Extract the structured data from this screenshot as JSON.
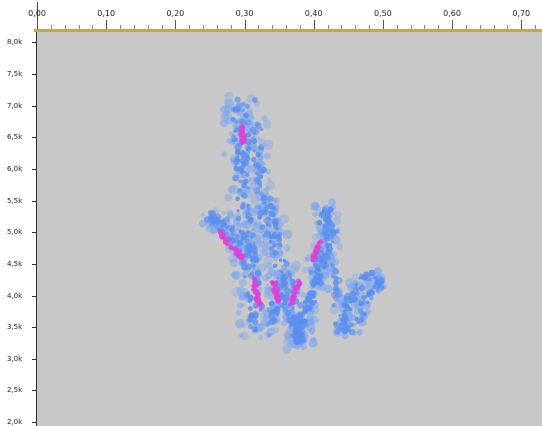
{
  "time_ruler": {
    "labels": [
      "0,00",
      "0,10",
      "0,20",
      "0,30",
      "0,40",
      "0,50",
      "0,60",
      "0,70"
    ],
    "values": [
      0.0,
      0.1,
      0.2,
      0.3,
      0.4,
      0.5,
      0.6,
      0.7
    ],
    "range": [
      0.0,
      0.73
    ]
  },
  "freq_ruler": {
    "labels": [
      "8,0k",
      "7,5k",
      "7,0k",
      "6,5k",
      "6,0k",
      "5,5k",
      "5,0k",
      "4,5k",
      "4,0k",
      "3,5k",
      "3,0k",
      "2,5k",
      "2,0k"
    ],
    "values": [
      8000,
      7500,
      7000,
      6500,
      6000,
      5500,
      5000,
      4500,
      4000,
      3500,
      3000,
      2500,
      2000
    ],
    "range": [
      1970,
      8100
    ]
  },
  "spectrogram": {
    "background_color": "#c8c8c8",
    "low_energy_color": "#7fa8ee",
    "mid_energy_color": "#5a8ff0",
    "high_energy_color": "#e040d8",
    "ruler_accent_color": "#c9a64a"
  }
}
